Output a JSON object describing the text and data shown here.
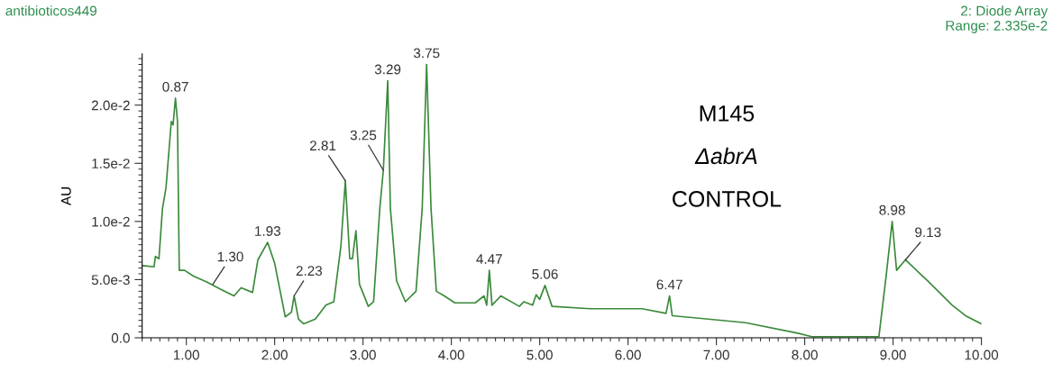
{
  "chart_data": {
    "type": "line",
    "title": "antibioticos449",
    "subtitle": "2: Diode Array\nRange: 2.335e-2",
    "ylabel": "AU",
    "x": [
      0.51,
      0.635,
      0.65,
      0.69,
      0.73,
      0.77,
      0.83,
      0.85,
      0.877,
      0.9,
      0.92,
      0.98,
      1.08,
      1.23,
      1.38,
      1.54,
      1.62,
      1.75,
      1.81,
      1.92,
      2.0,
      2.12,
      2.19,
      2.22,
      2.27,
      2.33,
      2.46,
      2.58,
      2.67,
      2.75,
      2.8,
      2.82,
      2.85,
      2.88,
      2.92,
      2.96,
      3.06,
      3.12,
      3.19,
      3.23,
      3.28,
      3.31,
      3.38,
      3.48,
      3.6,
      3.67,
      3.72,
      3.77,
      3.83,
      3.92,
      4.04,
      4.27,
      4.37,
      4.4,
      4.43,
      4.46,
      4.56,
      4.77,
      4.82,
      4.92,
      4.96,
      5.0,
      5.06,
      5.14,
      5.57,
      6.12,
      6.16,
      6.43,
      6.47,
      6.5,
      7.33,
      7.92,
      8.08,
      8.84,
      8.92,
      8.99,
      9.04,
      9.14,
      9.39,
      9.67,
      9.82,
      10.0
    ],
    "series": [
      {
        "color": "#3a8a3a",
        "values": [
          0.0062,
          0.0061,
          0.007,
          0.0068,
          0.0111,
          0.0129,
          0.0186,
          0.0183,
          0.0206,
          0.0186,
          0.0058,
          0.0058,
          0.0053,
          0.0048,
          0.0042,
          0.0036,
          0.0043,
          0.0039,
          0.0067,
          0.0082,
          0.0064,
          0.0018,
          0.0022,
          0.0036,
          0.0016,
          0.0012,
          0.0016,
          0.0028,
          0.0031,
          0.0079,
          0.0135,
          0.0108,
          0.0068,
          0.0068,
          0.0092,
          0.0046,
          0.0027,
          0.0031,
          0.0111,
          0.0144,
          0.0221,
          0.0111,
          0.0049,
          0.0031,
          0.004,
          0.0111,
          0.0235,
          0.0111,
          0.004,
          0.0036,
          0.003,
          0.003,
          0.0036,
          0.0028,
          0.0058,
          0.0028,
          0.0036,
          0.0027,
          0.0031,
          0.0028,
          0.0037,
          0.0033,
          0.0045,
          0.0027,
          0.0025,
          0.0025,
          0.0025,
          0.0021,
          0.0036,
          0.0019,
          0.0013,
          0.0004,
          0.0001,
          0.0001,
          0.0052,
          0.01,
          0.0058,
          0.0067,
          0.0049,
          0.0028,
          0.0019,
          0.0012
        ]
      }
    ],
    "xlim": [
      0.5,
      10.0
    ],
    "ylim": [
      0,
      0.0244
    ],
    "xticks": [
      {
        "value": 1,
        "label": "1.00"
      },
      {
        "value": 2,
        "label": "2.00"
      },
      {
        "value": 3,
        "label": "3.00"
      },
      {
        "value": 4,
        "label": "4.00"
      },
      {
        "value": 5,
        "label": "5.00"
      },
      {
        "value": 6,
        "label": "6.00"
      },
      {
        "value": 7,
        "label": "7.00"
      },
      {
        "value": 8,
        "label": "8.00"
      },
      {
        "value": 9,
        "label": "9.00"
      },
      {
        "value": 10,
        "label": "10.00"
      }
    ],
    "yticks": [
      {
        "value": 0,
        "label": "0.0"
      },
      {
        "value": 0.005,
        "label": "5.0e-3"
      },
      {
        "value": 0.01,
        "label": "1.0e-2"
      },
      {
        "value": 0.015,
        "label": "1.5e-2"
      },
      {
        "value": 0.02,
        "label": "2.0e-2"
      }
    ],
    "grid": false,
    "marker": "none",
    "line_style": "solid",
    "annotations": [
      {
        "text": "0.87",
        "x": 0.877,
        "y": 0.0206
      },
      {
        "text": "1.30",
        "x": 1.3,
        "y": 0.0046
      },
      {
        "text": "1.93",
        "x": 1.92,
        "y": 0.0082
      },
      {
        "text": "2.23",
        "x": 2.22,
        "y": 0.0036
      },
      {
        "text": "2.81",
        "x": 2.8,
        "y": 0.0135
      },
      {
        "text": "3.25",
        "x": 3.23,
        "y": 0.0144
      },
      {
        "text": "3.29",
        "x": 3.28,
        "y": 0.0221
      },
      {
        "text": "3.75",
        "x": 3.72,
        "y": 0.0235
      },
      {
        "text": "4.47",
        "x": 4.43,
        "y": 0.0058
      },
      {
        "text": "5.06",
        "x": 5.06,
        "y": 0.0045
      },
      {
        "text": "6.47",
        "x": 6.47,
        "y": 0.0036
      },
      {
        "text": "8.98",
        "x": 8.99,
        "y": 0.01
      },
      {
        "text": "9.13",
        "x": 9.14,
        "y": 0.0067
      },
      "M145",
      "ΔabrA",
      "CONTROL"
    ]
  }
}
